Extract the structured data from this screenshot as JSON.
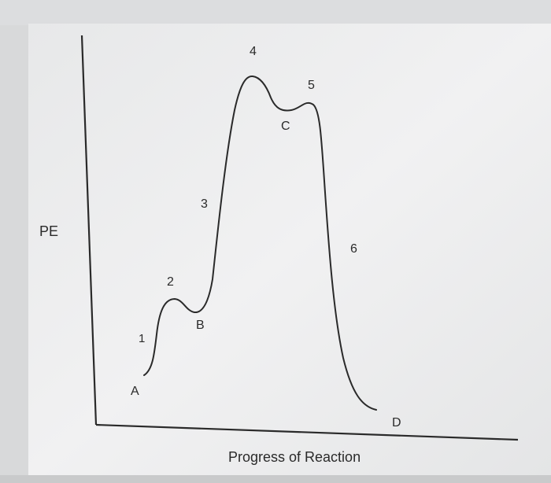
{
  "diagram": {
    "axes": {
      "y_label": "PE",
      "x_label": "Progress of Reaction"
    },
    "points": {
      "A": "A",
      "B": "B",
      "C": "C",
      "D": "D"
    },
    "steps": {
      "s1": "1",
      "s2": "2",
      "s3": "3",
      "s4": "4",
      "s5": "5",
      "s6": "6"
    },
    "colors": {
      "background": "#d9dadb",
      "paper": "#ececed",
      "ink": "#2a2a2a"
    }
  }
}
